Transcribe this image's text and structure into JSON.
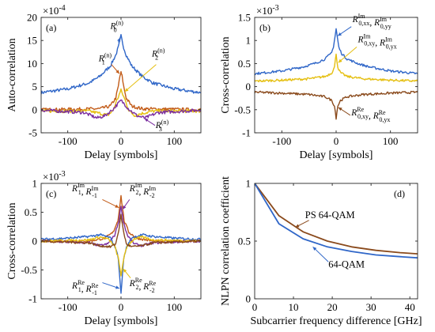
{
  "colors": {
    "blue": "#2f66c8",
    "orange": "#c25b18",
    "yellow": "#e5bf10",
    "purple": "#7b2ea0",
    "brown": "#8a4a1c",
    "axis": "#262626"
  },
  "chart_data": [
    {
      "panel": "(a)",
      "type": "line",
      "ylabel": "Auto-correlation",
      "xlabel": "Delay [symbols]",
      "exponent": "×10",
      "exponent_power": "-4",
      "xlim": [
        -150,
        150
      ],
      "ylim": [
        -5,
        20
      ],
      "xticks": [
        -100,
        0,
        100
      ],
      "xtick_labels": [
        "-100",
        "0",
        "100"
      ],
      "yticks": [
        -5,
        0,
        5,
        10,
        15,
        20
      ],
      "ytick_labels": [
        "-5",
        "0",
        "5",
        "10",
        "15",
        "20"
      ],
      "series": [
        {
          "name": "R_0^(n)",
          "color": "blue",
          "x": [
            -150,
            -100,
            -60,
            -40,
            -20,
            -10,
            -5,
            0,
            5,
            10,
            20,
            40,
            60,
            100,
            150
          ],
          "y": [
            3.7,
            4.5,
            5.8,
            7.2,
            9.5,
            11.8,
            13.5,
            16,
            13.5,
            11.8,
            9.5,
            7.2,
            5.8,
            4.5,
            3.7
          ]
        },
        {
          "name": "R_1^(n)",
          "color": "orange",
          "x": [
            -150,
            -40,
            -20,
            -10,
            -5,
            -2,
            0,
            2,
            5,
            10,
            20,
            40,
            150
          ],
          "y": [
            0,
            0.2,
            0.8,
            2.5,
            5,
            7.3,
            8,
            7.3,
            5,
            2.5,
            0.8,
            0.2,
            0
          ]
        },
        {
          "name": "R_2^(n)",
          "color": "yellow",
          "x": [
            -150,
            -60,
            -40,
            -25,
            -15,
            -8,
            0,
            8,
            15,
            25,
            40,
            60,
            150
          ],
          "y": [
            -0.3,
            -0.3,
            -0.8,
            -1.2,
            -0.2,
            2,
            4.2,
            2,
            -0.2,
            -1.2,
            -0.8,
            -0.3,
            -0.3
          ]
        },
        {
          "name": "R_3^(n)",
          "color": "purple",
          "x": [
            -150,
            -70,
            -45,
            -30,
            -15,
            -5,
            0,
            5,
            15,
            30,
            45,
            70,
            150
          ],
          "y": [
            -0.1,
            -0.6,
            -1.8,
            -1.3,
            0.1,
            1.4,
            2,
            1.4,
            0.1,
            -1.3,
            -1.8,
            -0.6,
            -0.1
          ]
        }
      ],
      "annotations": [
        "R_0^(n)",
        "R_1^(n)",
        "R_2^(n)",
        "R_3^(n)"
      ]
    },
    {
      "panel": "(b)",
      "type": "line",
      "ylabel": "Cross-correlation",
      "xlabel": "Delay [symbols]",
      "exponent": "×10",
      "exponent_power": "-3",
      "xlim": [
        -150,
        150
      ],
      "ylim": [
        -1,
        1.5
      ],
      "xticks": [
        -100,
        0,
        100
      ],
      "xtick_labels": [
        "-100",
        "0",
        "100"
      ],
      "yticks": [
        -1,
        -0.5,
        0,
        0.5,
        1,
        1.5
      ],
      "ytick_labels": [
        "-1",
        "-0.5",
        "0",
        "0.5",
        "1",
        "1.5"
      ],
      "series": [
        {
          "name": "R_0,xx^Im, R_0,yy^Im",
          "color": "blue",
          "x": [
            -150,
            -100,
            -60,
            -40,
            -20,
            -10,
            -5,
            0,
            5,
            10,
            20,
            40,
            60,
            100,
            150
          ],
          "y": [
            0.28,
            0.34,
            0.43,
            0.5,
            0.6,
            0.72,
            0.85,
            1.25,
            0.85,
            0.72,
            0.6,
            0.5,
            0.43,
            0.34,
            0.28
          ]
        },
        {
          "name": "R_0,xy^Im, R_0,yx^Im",
          "color": "yellow",
          "x": [
            -150,
            -100,
            -50,
            -20,
            -8,
            -3,
            0,
            3,
            8,
            20,
            50,
            100,
            150
          ],
          "y": [
            0.12,
            0.14,
            0.17,
            0.22,
            0.3,
            0.42,
            0.72,
            0.42,
            0.3,
            0.22,
            0.17,
            0.14,
            0.12
          ]
        },
        {
          "name": "R_0,xy^Re, R_0,yx^Re",
          "color": "brown",
          "x": [
            -150,
            -100,
            -50,
            -20,
            -8,
            -3,
            0,
            3,
            8,
            20,
            50,
            100,
            150
          ],
          "y": [
            -0.12,
            -0.14,
            -0.17,
            -0.22,
            -0.3,
            -0.42,
            -0.68,
            -0.42,
            -0.3,
            -0.22,
            -0.17,
            -0.14,
            -0.12
          ]
        }
      ],
      "annotations": [
        "R_0,xx^Im, R_0,yy^Im",
        "R_0,xy^Im, R_0,yx^Im",
        "R_0,xy^Re, R_0,yx^Re"
      ]
    },
    {
      "panel": "(c)",
      "type": "line",
      "ylabel": "Cross-correlation",
      "xlabel": "Delay [symbols]",
      "exponent": "×10",
      "exponent_power": "-3",
      "xlim": [
        -150,
        150
      ],
      "ylim": [
        -1,
        1
      ],
      "xticks": [
        -100,
        0,
        100
      ],
      "xtick_labels": [
        "-100",
        "0",
        "100"
      ],
      "yticks": [
        -1,
        -0.5,
        0,
        0.5,
        1
      ],
      "ytick_labels": [
        "-1",
        "-0.5",
        "0",
        "0.5",
        "1"
      ],
      "series": [
        {
          "name": "R_1^Im, R_-1^Im",
          "color": "orange",
          "x": [
            -150,
            -60,
            -30,
            -15,
            -6,
            0,
            6,
            15,
            30,
            60,
            150
          ],
          "y": [
            0,
            0,
            0.05,
            0.15,
            0.35,
            0.78,
            0.35,
            0.15,
            0.05,
            0,
            0
          ]
        },
        {
          "name": "R_2^Im, R_-2^Im",
          "color": "purple",
          "x": [
            -150,
            -60,
            -40,
            -25,
            -12,
            -4,
            0,
            4,
            12,
            25,
            40,
            60,
            150
          ],
          "y": [
            0,
            -0.03,
            -0.08,
            -0.05,
            0.1,
            0.35,
            0.62,
            0.35,
            0.1,
            -0.05,
            -0.08,
            -0.03,
            0
          ]
        },
        {
          "name": "R_1^Re, R_-1^Re",
          "color": "blue",
          "x": [
            -150,
            -100,
            -60,
            -40,
            -20,
            -10,
            -5,
            0,
            5,
            10,
            20,
            40,
            60,
            100,
            150
          ],
          "y": [
            0.03,
            0.05,
            0.08,
            0.11,
            0.06,
            -0.12,
            -0.3,
            -0.92,
            -0.3,
            -0.12,
            0.06,
            0.11,
            0.08,
            0.05,
            0.03
          ]
        },
        {
          "name": "R_2^Re, R_-2^Re",
          "color": "yellow",
          "x": [
            -150,
            -60,
            -40,
            -25,
            -12,
            -5,
            0,
            5,
            12,
            25,
            40,
            60,
            150
          ],
          "y": [
            0,
            0.02,
            0.07,
            0.04,
            -0.08,
            -0.3,
            -0.6,
            -0.3,
            -0.08,
            0.04,
            0.07,
            0.02,
            0
          ]
        },
        {
          "name": "brown",
          "color": "brown",
          "x": [
            -150,
            -60,
            -40,
            -20,
            -10,
            -4,
            0,
            4,
            10,
            20,
            40,
            60,
            150
          ],
          "y": [
            0,
            -0.03,
            -0.08,
            -0.1,
            -0.05,
            0.2,
            0.45,
            0.2,
            -0.05,
            -0.1,
            -0.08,
            -0.03,
            0
          ]
        }
      ],
      "annotations": [
        "R_1^Im, R_-1^Im",
        "R_2^Im, R_-2^Im",
        "R_1^Re, R_-1^Re",
        "R_2^Re, R_-2^Re"
      ]
    },
    {
      "panel": "(d)",
      "type": "line",
      "ylabel": "NLPN correlation coefficient",
      "xlabel": "Subcarrier frequency difference [GHz]",
      "xlim": [
        0,
        42
      ],
      "ylim": [
        0,
        1
      ],
      "xticks": [
        0,
        10,
        20,
        30,
        40
      ],
      "xtick_labels": [
        "0",
        "10",
        "20",
        "30",
        "40"
      ],
      "yticks": [
        0,
        0.5,
        1
      ],
      "ytick_labels": [
        "0",
        "0.5",
        "1"
      ],
      "series": [
        {
          "name": "PS 64-QAM",
          "color": "brown",
          "x": [
            0,
            6.25,
            12.5,
            18.75,
            25,
            31.25,
            37.5,
            42
          ],
          "y": [
            1,
            0.72,
            0.58,
            0.5,
            0.45,
            0.42,
            0.4,
            0.39
          ]
        },
        {
          "name": "64-QAM",
          "color": "blue",
          "x": [
            0,
            6.25,
            12.5,
            18.75,
            25,
            31.25,
            37.5,
            42
          ],
          "y": [
            1,
            0.65,
            0.52,
            0.45,
            0.41,
            0.38,
            0.365,
            0.355
          ]
        }
      ]
    }
  ]
}
